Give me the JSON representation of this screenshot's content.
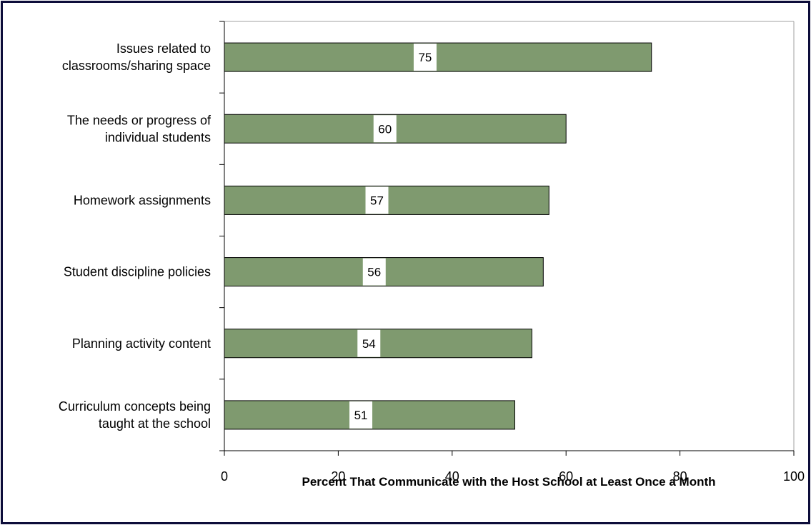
{
  "chart_data": {
    "type": "bar",
    "orientation": "horizontal",
    "categories": [
      [
        "Issues related to",
        "classrooms/sharing space"
      ],
      [
        "The needs or progress of",
        "individual students"
      ],
      [
        "Homework assignments"
      ],
      [
        "Student discipline policies"
      ],
      [
        "Planning activity content"
      ],
      [
        "Curriculum concepts being",
        "taught at the school"
      ]
    ],
    "values": [
      75,
      60,
      57,
      56,
      54,
      51
    ],
    "xlabel": "Percent That Communicate with the Host School at Least Once a Month",
    "xlim": [
      0,
      100
    ],
    "xticks": [
      "0",
      "20",
      "40",
      "60",
      "80",
      "100"
    ],
    "bar_color": "#7f9a6f",
    "grid": false,
    "legend": "none"
  }
}
